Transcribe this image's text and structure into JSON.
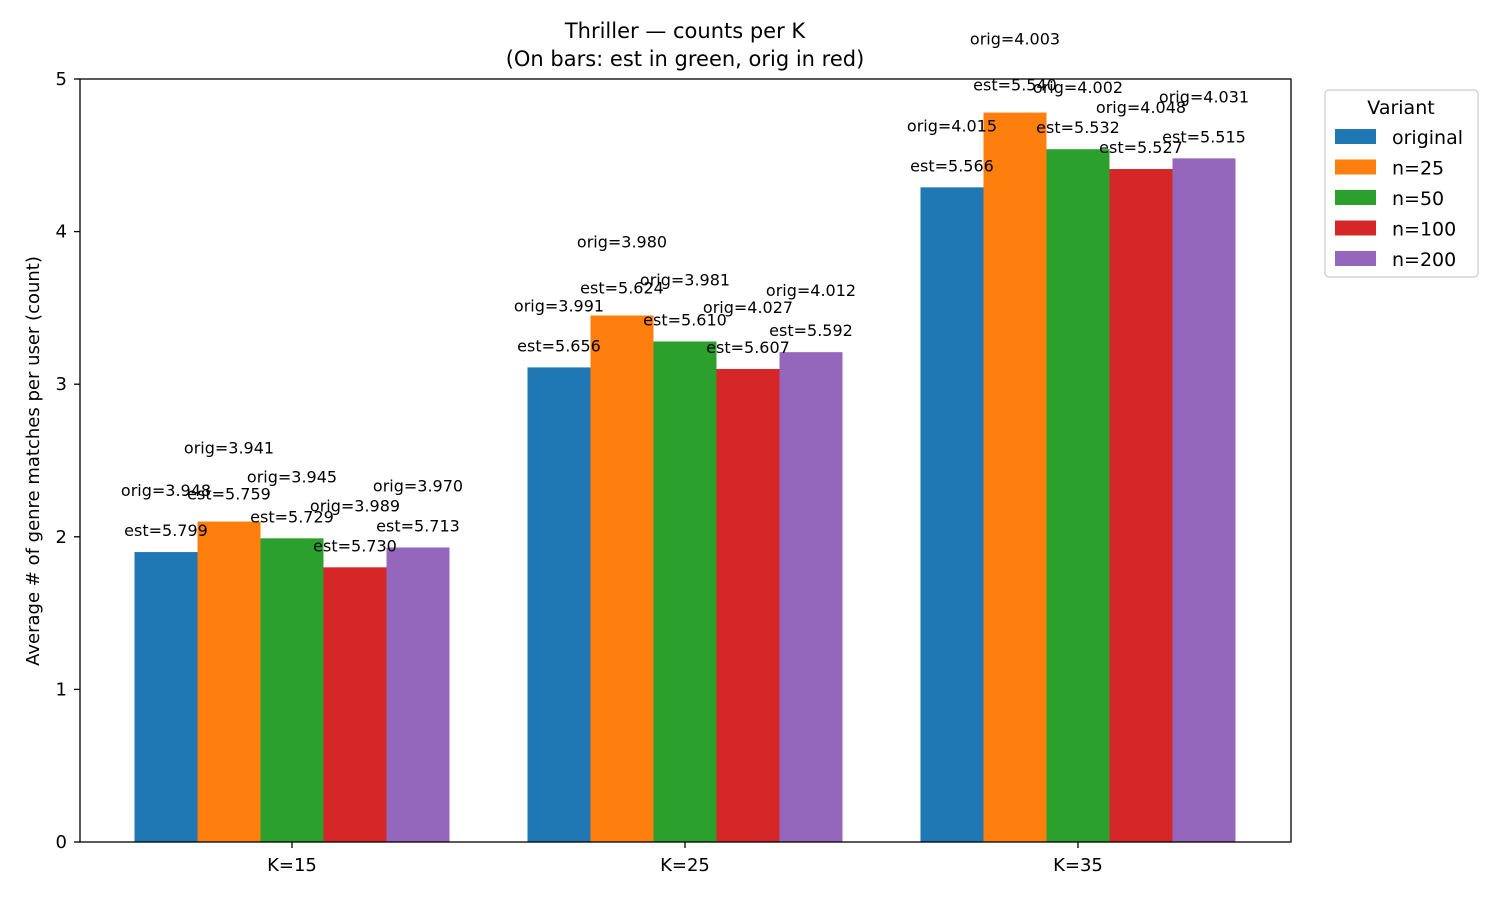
{
  "chart_data": {
    "type": "bar",
    "title": "Thriller — counts per K",
    "subtitle": "(On bars: est in green, orig in red)",
    "xlabel": "",
    "ylabel": "Average # of genre matches per user (count)",
    "ylim": [
      0,
      5
    ],
    "yticks": [
      "0",
      "1",
      "2",
      "3",
      "4",
      "5"
    ],
    "categories": [
      "K=15",
      "K=25",
      "K=35"
    ],
    "legend_title": "Variant",
    "legend_position": "outside-top-right",
    "grid": false,
    "series": [
      {
        "name": "original",
        "color": "#1f77b4",
        "values": [
          1.9,
          3.11,
          4.29
        ],
        "est": [
          "est=5.799",
          "est=5.656",
          "est=5.566"
        ],
        "orig": [
          "orig=3.948",
          "orig=3.991",
          "orig=4.015"
        ]
      },
      {
        "name": "n=25",
        "color": "#ff7f0e",
        "values": [
          2.1,
          3.45,
          4.78
        ],
        "est": [
          "est=5.759",
          "est=5.624",
          "est=5.540"
        ],
        "orig": [
          "orig=3.941",
          "orig=3.980",
          "orig=4.003"
        ]
      },
      {
        "name": "n=50",
        "color": "#2ca02c",
        "values": [
          1.99,
          3.28,
          4.54
        ],
        "est": [
          "est=5.729",
          "est=5.610",
          "est=5.532"
        ],
        "orig": [
          "orig=3.945",
          "orig=3.981",
          "orig=4.002"
        ]
      },
      {
        "name": "n=100",
        "color": "#d62728",
        "values": [
          1.8,
          3.1,
          4.41
        ],
        "est": [
          "est=5.730",
          "est=5.607",
          "est=5.527"
        ],
        "orig": [
          "orig=3.989",
          "orig=4.027",
          "orig=4.048"
        ]
      },
      {
        "name": "n=200",
        "color": "#9467bd",
        "values": [
          1.93,
          3.21,
          4.48
        ],
        "est": [
          "est=5.713",
          "est=5.592",
          "est=5.515"
        ],
        "orig": [
          "orig=3.970",
          "orig=4.012",
          "orig=4.031"
        ]
      }
    ],
    "annotation_colors": {
      "est": "#008000",
      "orig": "#ff0000"
    }
  }
}
